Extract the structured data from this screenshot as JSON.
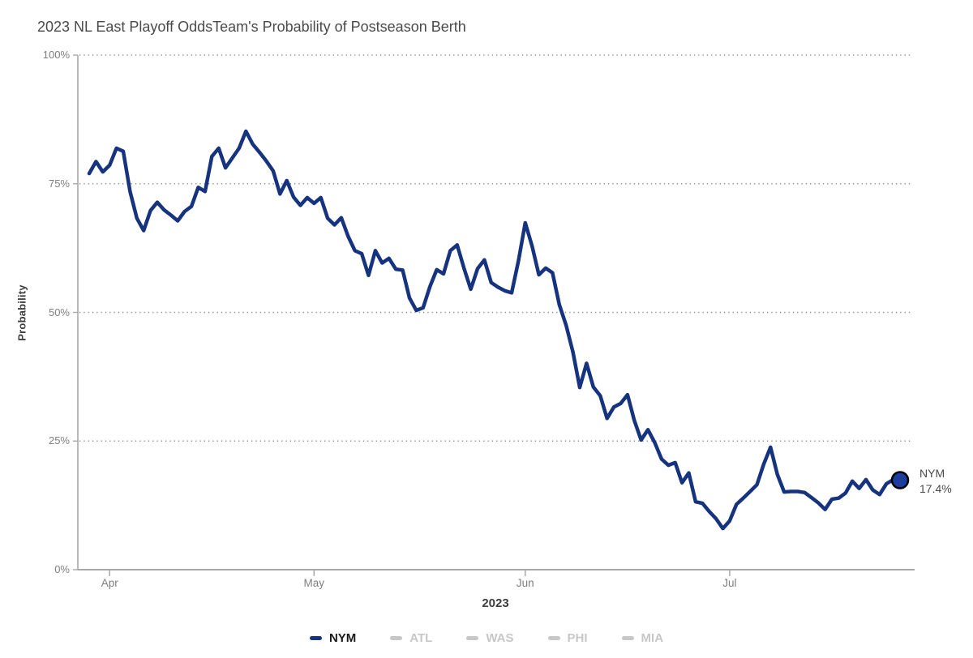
{
  "header": {
    "title": "2023 NL East Playoff Odds",
    "subtitle": "Team's Probability of Postseason Berth"
  },
  "chart_data": {
    "type": "line",
    "title": "2023 NL East Playoff Odds",
    "subtitle": "Team's Probability of Postseason Berth",
    "xlabel": "2023",
    "ylabel": "Probability",
    "ylim": [
      0,
      100
    ],
    "grid": "horizontal-dotted",
    "legend_position": "bottom",
    "yticks": [
      {
        "value": 0,
        "label": "0%"
      },
      {
        "value": 25,
        "label": "25%"
      },
      {
        "value": 50,
        "label": "50%"
      },
      {
        "value": 75,
        "label": "75%"
      },
      {
        "value": 100,
        "label": "100%"
      }
    ],
    "xticks": [
      {
        "label": "Apr",
        "day_index": 3
      },
      {
        "label": "May",
        "day_index": 33
      },
      {
        "label": "Jun",
        "day_index": 64
      },
      {
        "label": "Jul",
        "day_index": 94
      }
    ],
    "series": [
      {
        "name": "NYM",
        "active": true,
        "color": "#16337F",
        "start_date": "2023-03-29",
        "frequency": "daily",
        "values": [
          77.0,
          79.3,
          77.3,
          78.6,
          81.9,
          81.3,
          73.5,
          68.3,
          65.9,
          69.8,
          71.4,
          69.9,
          68.9,
          67.8,
          69.6,
          70.6,
          74.3,
          73.5,
          80.3,
          81.9,
          78.1,
          80.0,
          81.9,
          85.2,
          82.7,
          81.1,
          79.4,
          77.5,
          73.0,
          75.6,
          72.4,
          70.8,
          72.3,
          71.2,
          72.3,
          68.3,
          67.0,
          68.4,
          64.8,
          62.0,
          61.4,
          57.2,
          62.0,
          59.6,
          60.5,
          58.4,
          58.2,
          52.8,
          50.4,
          50.9,
          55.0,
          58.3,
          57.5,
          62.0,
          63.1,
          58.6,
          54.5,
          58.5,
          60.2,
          55.8,
          54.9,
          54.2,
          53.8,
          60.0,
          67.4,
          62.9,
          57.3,
          58.6,
          57.7,
          51.5,
          47.5,
          42.3,
          35.4,
          40.1,
          35.5,
          33.8,
          29.4,
          31.6,
          32.3,
          34.0,
          29.0,
          25.2,
          27.2,
          24.7,
          21.5,
          20.3,
          20.8,
          16.9,
          18.8,
          13.2,
          12.9,
          11.3,
          9.9,
          8.0,
          9.5,
          12.7,
          13.9,
          15.2,
          16.5,
          20.5,
          23.8,
          18.5,
          15.1,
          15.2,
          15.2,
          15.0,
          14.0,
          13.0,
          11.7,
          13.7,
          13.9,
          14.9,
          17.2,
          15.8,
          17.5,
          15.5,
          14.6,
          16.7,
          17.5,
          17.4
        ],
        "end_point": {
          "value": 17.4,
          "label_team": "NYM",
          "label_value": "17.4%"
        }
      },
      {
        "name": "ATL",
        "active": false
      },
      {
        "name": "WAS",
        "active": false
      },
      {
        "name": "PHI",
        "active": false
      },
      {
        "name": "MIA",
        "active": false
      }
    ]
  },
  "end_label": {
    "team": "NYM",
    "value": "17.4%"
  },
  "legend": {
    "items": [
      {
        "label": "NYM",
        "active": true
      },
      {
        "label": "ATL",
        "active": false
      },
      {
        "label": "WAS",
        "active": false
      },
      {
        "label": "PHI",
        "active": false
      },
      {
        "label": "MIA",
        "active": false
      }
    ]
  },
  "colors": {
    "line": "#16337F",
    "dot_fill": "#1C3F9E",
    "dot_stroke": "#000000",
    "grid": "#909090",
    "axis": "#A8A8A8",
    "tick_label": "#7E7E7E",
    "title": "#4A4A4A",
    "axis_title": "#3D3D3D",
    "legend_active_text": "#1A1A1A",
    "legend_inactive": "#C7C7C7"
  }
}
